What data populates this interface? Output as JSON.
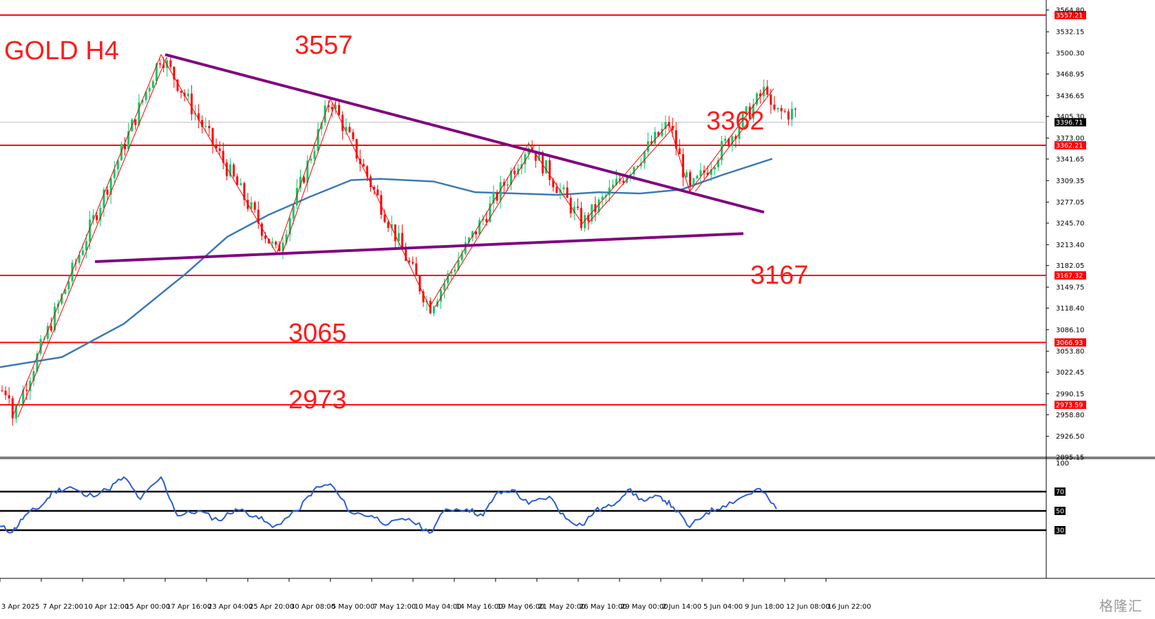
{
  "chart_data": {
    "type": "candlestick",
    "title": "GOLD H4",
    "price_axis": {
      "range": [
        2895.15,
        3571.5
      ],
      "ticks": [
        3564.8,
        3532.15,
        3500.3,
        3468.95,
        3436.65,
        3405.3,
        3373.0,
        3341.65,
        3309.35,
        3277.05,
        3245.7,
        3213.4,
        3182.05,
        3149.75,
        3118.4,
        3086.1,
        3053.8,
        3022.45,
        2990.15,
        2958.8,
        2926.5,
        2895.15
      ]
    },
    "time_axis": {
      "labels": [
        "3 Apr 2025",
        "7 Apr 22:00",
        "10 Apr 12:00",
        "15 Apr 00:00",
        "17 Apr 16:00",
        "23 Apr 04:00",
        "25 Apr 20:00",
        "30 Apr 08:00",
        "5 May 00:00",
        "7 May 12:00",
        "10 May 04:00",
        "14 May 16:00",
        "19 May 06:00",
        "21 May 20:00",
        "26 May 10:00",
        "29 May 00:00",
        "2 Jun 14:00",
        "5 Jun 04:00",
        "9 Jun 18:00",
        "12 Jun 08:00",
        "16 Jun 22:00"
      ]
    },
    "current_price": 3396.71,
    "horizontal_levels": [
      {
        "label": "3557",
        "price": 3557.21,
        "tag": "3557.21"
      },
      {
        "label": "3362",
        "price": 3362.21,
        "tag": "3362.21"
      },
      {
        "label": "3167",
        "price": 3167.32,
        "tag": "3167.32"
      },
      {
        "label": "3065",
        "price": 3066.93,
        "tag": "3066.93"
      },
      {
        "label": "2973",
        "price": 2973.59,
        "tag": "2973.59"
      }
    ],
    "trendlines": [
      {
        "name": "descending resistance",
        "from": [
          4.0,
          3498
        ],
        "to": [
          18.5,
          3262
        ],
        "color": "#800080"
      },
      {
        "name": "ascending support",
        "from": [
          2.3,
          3188
        ],
        "to": [
          18.0,
          3230
        ],
        "color": "#800080"
      }
    ],
    "zigzag_points": [
      [
        0.3,
        2955
      ],
      [
        3.9,
        3498
      ],
      [
        6.7,
        3200
      ],
      [
        8.0,
        3432
      ],
      [
        10.4,
        3120
      ],
      [
        12.8,
        3365
      ],
      [
        14.1,
        3245
      ],
      [
        16.2,
        3395
      ],
      [
        16.7,
        3293
      ],
      [
        18.6,
        3451
      ]
    ],
    "moving_average": [
      [
        0,
        3030
      ],
      [
        1.5,
        3045
      ],
      [
        3,
        3095
      ],
      [
        4.5,
        3170
      ],
      [
        5.5,
        3225
      ],
      [
        6.5,
        3258
      ],
      [
        7.5,
        3285
      ],
      [
        8.5,
        3310
      ],
      [
        9.2,
        3312
      ],
      [
        10.5,
        3308
      ],
      [
        11.5,
        3292
      ],
      [
        12.5,
        3290
      ],
      [
        13.5,
        3288
      ],
      [
        14.5,
        3292
      ],
      [
        15.5,
        3290
      ],
      [
        16.5,
        3296
      ],
      [
        17.5,
        3318
      ],
      [
        18.7,
        3342
      ]
    ],
    "rsi": {
      "range": [
        0,
        100
      ],
      "ticks": [
        100,
        70,
        50,
        30
      ],
      "levels": [
        70,
        50,
        30
      ],
      "values": [
        [
          0.0,
          34
        ],
        [
          0.3,
          28
        ],
        [
          0.6,
          45
        ],
        [
          1.0,
          55
        ],
        [
          1.3,
          70
        ],
        [
          1.7,
          75
        ],
        [
          2.1,
          65
        ],
        [
          2.6,
          72
        ],
        [
          3.0,
          85
        ],
        [
          3.4,
          62
        ],
        [
          3.9,
          85
        ],
        [
          4.3,
          45
        ],
        [
          4.8,
          50
        ],
        [
          5.3,
          40
        ],
        [
          5.7,
          52
        ],
        [
          6.2,
          45
        ],
        [
          6.6,
          33
        ],
        [
          7.2,
          50
        ],
        [
          7.6,
          72
        ],
        [
          8.0,
          78
        ],
        [
          8.5,
          48
        ],
        [
          9.0,
          45
        ],
        [
          9.4,
          36
        ],
        [
          9.9,
          42
        ],
        [
          10.4,
          27
        ],
        [
          10.8,
          52
        ],
        [
          11.3,
          52
        ],
        [
          11.7,
          45
        ],
        [
          12.0,
          67
        ],
        [
          12.4,
          72
        ],
        [
          12.8,
          57
        ],
        [
          13.3,
          65
        ],
        [
          13.7,
          42
        ],
        [
          14.1,
          35
        ],
        [
          14.4,
          50
        ],
        [
          14.8,
          55
        ],
        [
          15.2,
          72
        ],
        [
          15.6,
          60
        ],
        [
          16.0,
          65
        ],
        [
          16.3,
          54
        ],
        [
          16.7,
          33
        ],
        [
          17.1,
          48
        ],
        [
          17.5,
          55
        ],
        [
          18.0,
          65
        ],
        [
          18.4,
          73
        ],
        [
          18.8,
          52
        ]
      ]
    }
  },
  "watermark": "格隆汇"
}
